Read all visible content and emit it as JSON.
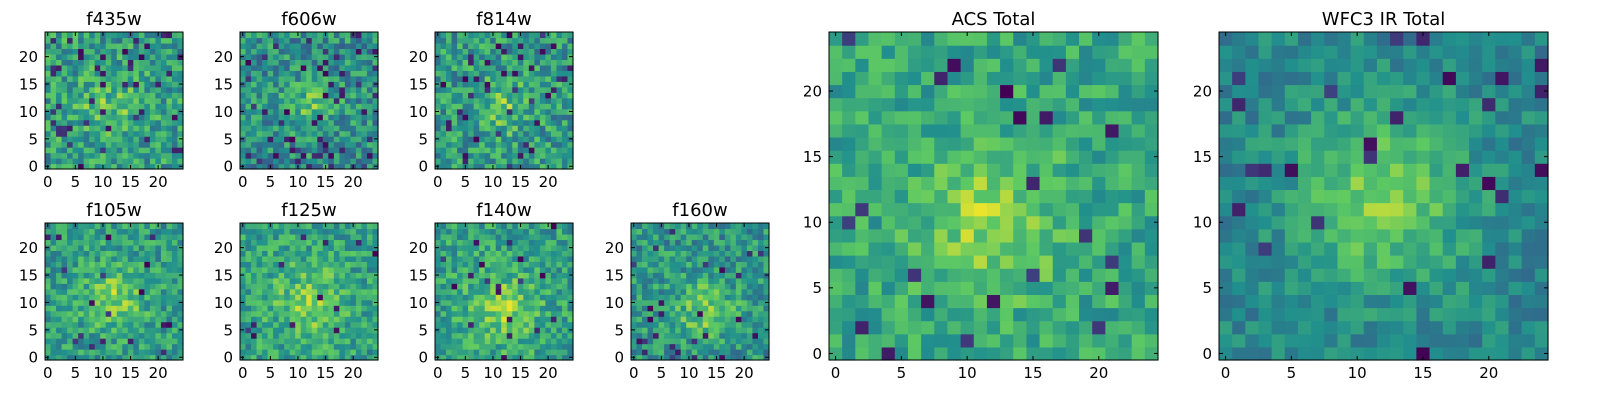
{
  "colormap": {
    "name": "viridis",
    "stops": [
      "#440154",
      "#3b528b",
      "#21908d",
      "#5dc963",
      "#fde725"
    ]
  },
  "chart_data": [
    {
      "type": "heatmap",
      "title": "f435w",
      "grid_size": [
        25,
        25
      ],
      "xticks": [
        0,
        5,
        10,
        15,
        20
      ],
      "yticks": [
        0,
        5,
        10,
        15,
        20
      ],
      "xlim": [
        -0.5,
        24.5
      ],
      "ylim": [
        -0.5,
        24.5
      ],
      "xlabel": "",
      "ylabel": "",
      "seed": 101,
      "noise": 0.42,
      "center": [
        11,
        11
      ],
      "peak": 0.16,
      "sigma": 4.0,
      "base": 0.56,
      "dark_fraction": 0.06
    },
    {
      "type": "heatmap",
      "title": "f606w",
      "grid_size": [
        25,
        25
      ],
      "xticks": [
        0,
        5,
        10,
        15,
        20
      ],
      "yticks": [
        0,
        5,
        10,
        15,
        20
      ],
      "xlim": [
        -0.5,
        24.5
      ],
      "ylim": [
        -0.5,
        24.5
      ],
      "xlabel": "",
      "ylabel": "",
      "seed": 202,
      "noise": 0.42,
      "center": [
        12,
        11
      ],
      "peak": 0.22,
      "sigma": 3.2,
      "base": 0.5,
      "dark_fraction": 0.08
    },
    {
      "type": "heatmap",
      "title": "f814w",
      "grid_size": [
        25,
        25
      ],
      "xticks": [
        0,
        5,
        10,
        15,
        20
      ],
      "yticks": [
        0,
        5,
        10,
        15,
        20
      ],
      "xlim": [
        -0.5,
        24.5
      ],
      "ylim": [
        -0.5,
        24.5
      ],
      "xlabel": "",
      "ylabel": "",
      "seed": 303,
      "noise": 0.42,
      "center": [
        12,
        11
      ],
      "peak": 0.2,
      "sigma": 3.5,
      "base": 0.54,
      "dark_fraction": 0.07
    },
    {
      "type": "heatmap",
      "title": "f105w",
      "grid_size": [
        25,
        25
      ],
      "xticks": [
        0,
        5,
        10,
        15,
        20
      ],
      "yticks": [
        0,
        5,
        10,
        15,
        20
      ],
      "xlim": [
        -0.5,
        24.5
      ],
      "ylim": [
        -0.5,
        24.5
      ],
      "xlabel": "",
      "ylabel": "",
      "seed": 404,
      "noise": 0.36,
      "center": [
        12,
        11
      ],
      "peak": 0.24,
      "sigma": 4.0,
      "base": 0.55,
      "dark_fraction": 0.03
    },
    {
      "type": "heatmap",
      "title": "f125w",
      "grid_size": [
        25,
        25
      ],
      "xticks": [
        0,
        5,
        10,
        15,
        20
      ],
      "yticks": [
        0,
        5,
        10,
        15,
        20
      ],
      "xlim": [
        -0.5,
        24.5
      ],
      "ylim": [
        -0.5,
        24.5
      ],
      "xlabel": "",
      "ylabel": "",
      "seed": 505,
      "noise": 0.36,
      "center": [
        12,
        10
      ],
      "peak": 0.22,
      "sigma": 4.5,
      "base": 0.57,
      "dark_fraction": 0.03
    },
    {
      "type": "heatmap",
      "title": "f140w",
      "grid_size": [
        25,
        25
      ],
      "xticks": [
        0,
        5,
        10,
        15,
        20
      ],
      "yticks": [
        0,
        5,
        10,
        15,
        20
      ],
      "xlim": [
        -0.5,
        24.5
      ],
      "ylim": [
        -0.5,
        24.5
      ],
      "xlabel": "",
      "ylabel": "",
      "seed": 606,
      "noise": 0.36,
      "center": [
        12,
        9
      ],
      "peak": 0.24,
      "sigma": 4.5,
      "base": 0.57,
      "dark_fraction": 0.03
    },
    {
      "type": "heatmap",
      "title": "f160w",
      "grid_size": [
        25,
        25
      ],
      "xticks": [
        0,
        5,
        10,
        15,
        20
      ],
      "yticks": [
        0,
        5,
        10,
        15,
        20
      ],
      "xlim": [
        -0.5,
        24.5
      ],
      "ylim": [
        -0.5,
        24.5
      ],
      "xlabel": "",
      "ylabel": "",
      "seed": 707,
      "noise": 0.38,
      "center": [
        13,
        9
      ],
      "peak": 0.26,
      "sigma": 3.8,
      "base": 0.52,
      "dark_fraction": 0.05
    },
    {
      "type": "heatmap",
      "title": "ACS Total",
      "grid_size": [
        25,
        25
      ],
      "xticks": [
        0,
        5,
        10,
        15,
        20
      ],
      "yticks": [
        0,
        5,
        10,
        15,
        20
      ],
      "xlim": [
        -0.5,
        24.5
      ],
      "ylim": [
        -0.5,
        24.5
      ],
      "xlabel": "",
      "ylabel": "",
      "seed": 808,
      "noise": 0.3,
      "center": [
        12,
        10
      ],
      "peak": 0.24,
      "sigma": 3.6,
      "base": 0.6,
      "dark_fraction": 0.03
    },
    {
      "type": "heatmap",
      "title": "WFC3 IR Total",
      "grid_size": [
        25,
        25
      ],
      "xticks": [
        0,
        5,
        10,
        15,
        20
      ],
      "yticks": [
        0,
        5,
        10,
        15,
        20
      ],
      "xlim": [
        -0.5,
        24.5
      ],
      "ylim": [
        -0.5,
        24.5
      ],
      "xlabel": "",
      "ylabel": "",
      "seed": 909,
      "noise": 0.24,
      "center": [
        12,
        12
      ],
      "peak": 0.34,
      "sigma": 4.6,
      "base": 0.46,
      "dark_fraction": 0.04
    }
  ]
}
